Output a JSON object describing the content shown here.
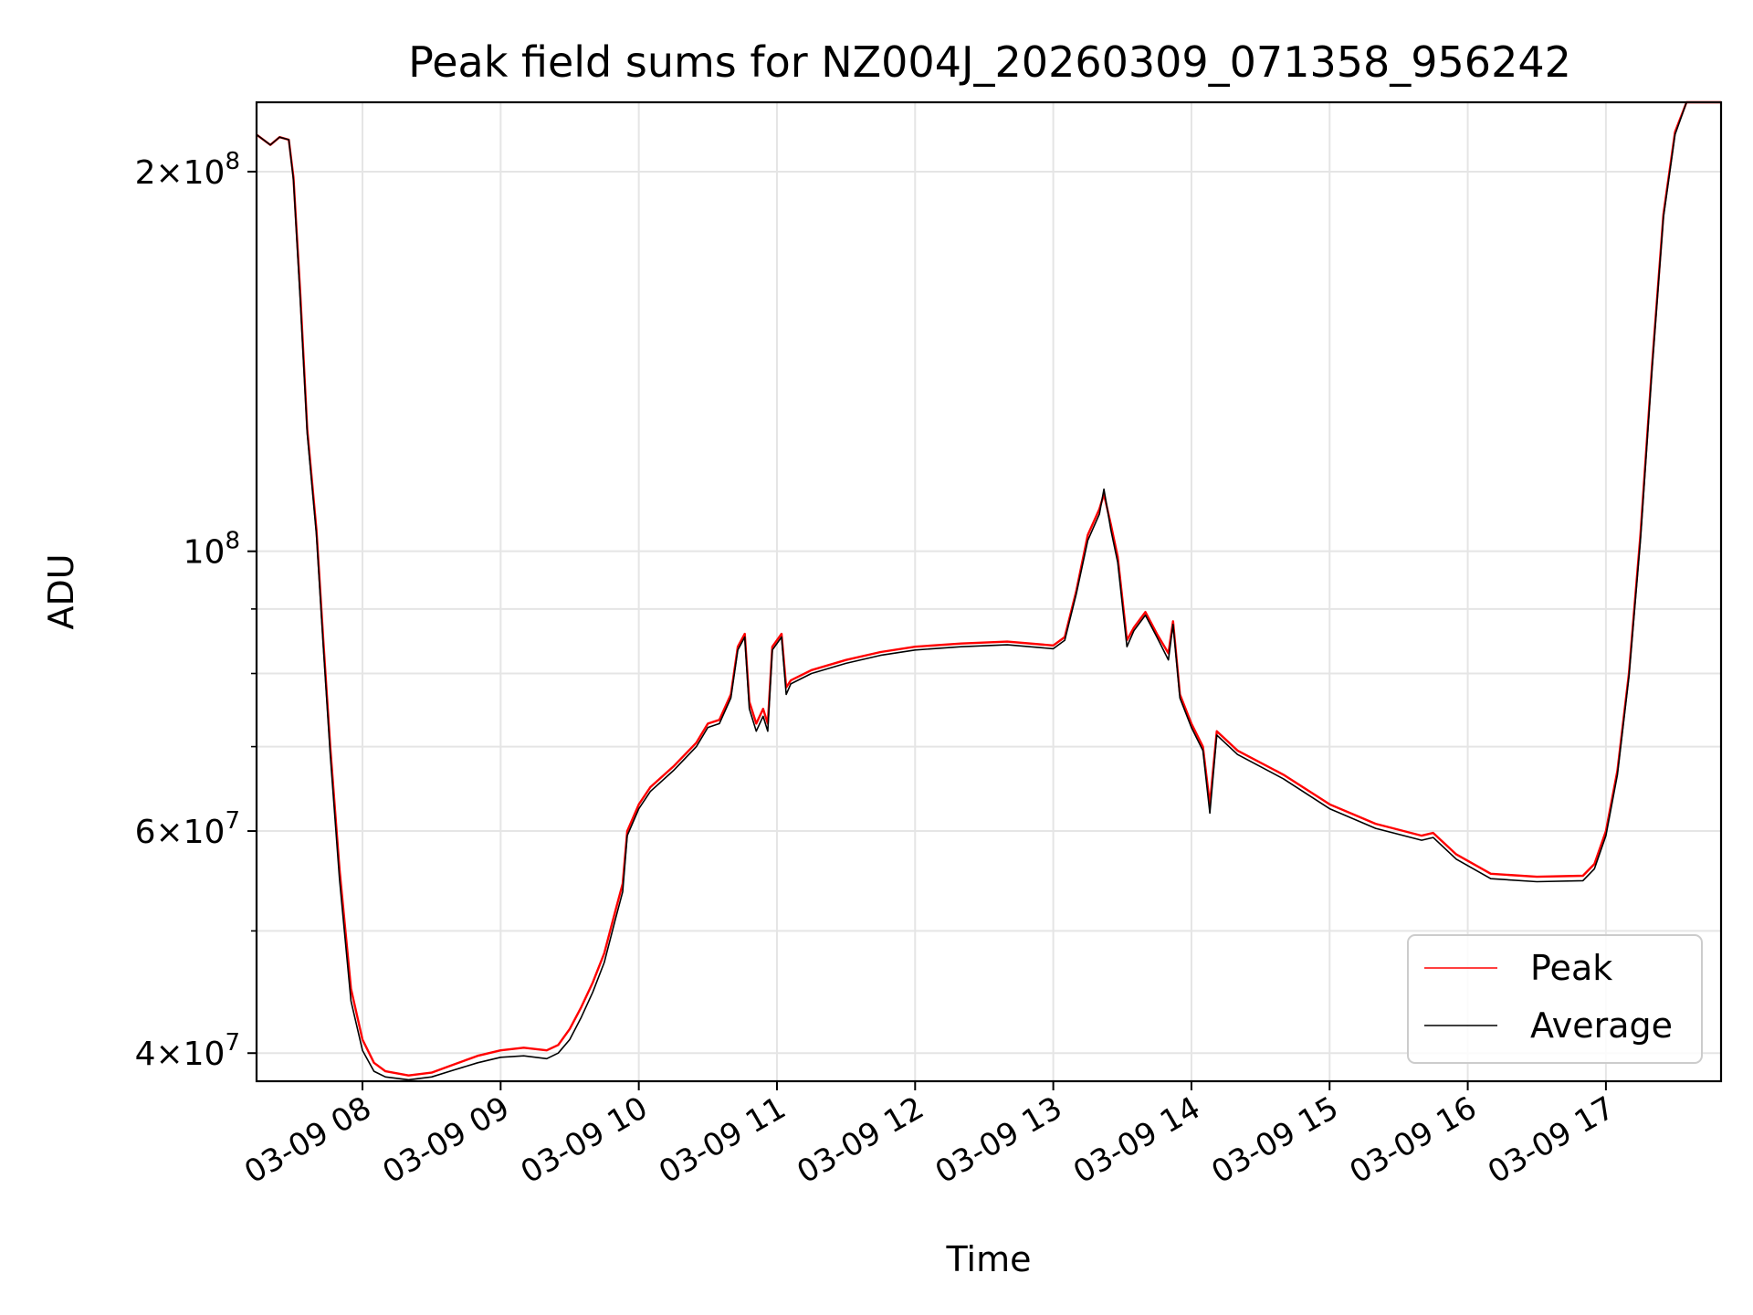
{
  "chart_data": {
    "type": "line",
    "title": "Peak field sums for NZ004J_20260309_071358_956242",
    "xlabel": "Time",
    "ylabel": "ADU",
    "yscale": "log",
    "grid": true,
    "legend_position": "lower-right",
    "xlim": [
      "2026-03-09 07:14",
      "2026-03-09 17:50"
    ],
    "ylim": [
      38000000.0,
      227000000.0
    ],
    "x_ticks": [
      "2026-03-09 08:00",
      "2026-03-09 09:00",
      "2026-03-09 10:00",
      "2026-03-09 11:00",
      "2026-03-09 12:00",
      "2026-03-09 13:00",
      "2026-03-09 14:00",
      "2026-03-09 15:00",
      "2026-03-09 16:00",
      "2026-03-09 17:00"
    ],
    "x_tick_labels": [
      "03-09 08",
      "03-09 09",
      "03-09 10",
      "03-09 11",
      "03-09 12",
      "03-09 13",
      "03-09 14",
      "03-09 15",
      "03-09 16",
      "03-09 17"
    ],
    "y_major_ticks": [
      {
        "value": 200000000.0,
        "mantissa": "2",
        "exp": "8"
      },
      {
        "value": 100000000.0,
        "mantissa": "",
        "exp": "8"
      },
      {
        "value": 60000000.0,
        "mantissa": "6",
        "exp": "7"
      },
      {
        "value": 40000000.0,
        "mantissa": "4",
        "exp": "7"
      }
    ],
    "y_minor_ticks": [
      90000000.0,
      80000000.0,
      70000000.0,
      50000000.0
    ],
    "colors": {
      "peak": "#ff0000",
      "average": "#000000",
      "grid": "#e5e5e5"
    },
    "series": [
      {
        "name": "Peak",
        "color": "#ff0000",
        "points": [
          [
            "2026-03-09 07:14",
            214000000.0
          ],
          [
            "2026-03-09 07:20",
            210000000.0
          ],
          [
            "2026-03-09 07:24",
            213000000.0
          ],
          [
            "2026-03-09 07:28",
            212000000.0
          ],
          [
            "2026-03-09 07:30",
            198000000.0
          ],
          [
            "2026-03-09 07:33",
            160000000.0
          ],
          [
            "2026-03-09 07:36",
            125000000.0
          ],
          [
            "2026-03-09 07:40",
            104000000.0
          ],
          [
            "2026-03-09 07:43",
            85000000.0
          ],
          [
            "2026-03-09 07:46",
            70000000.0
          ],
          [
            "2026-03-09 07:50",
            56000000.0
          ],
          [
            "2026-03-09 07:55",
            45000000.0
          ],
          [
            "2026-03-09 08:00",
            41000000.0
          ],
          [
            "2026-03-09 08:05",
            39300000.0
          ],
          [
            "2026-03-09 08:10",
            38700000.0
          ],
          [
            "2026-03-09 08:20",
            38400000.0
          ],
          [
            "2026-03-09 08:30",
            38600000.0
          ],
          [
            "2026-03-09 08:40",
            39200000.0
          ],
          [
            "2026-03-09 08:50",
            39800000.0
          ],
          [
            "2026-03-09 09:00",
            40200000.0
          ],
          [
            "2026-03-09 09:10",
            40400000.0
          ],
          [
            "2026-03-09 09:20",
            40200000.0
          ],
          [
            "2026-03-09 09:25",
            40600000.0
          ],
          [
            "2026-03-09 09:30",
            41800000.0
          ],
          [
            "2026-03-09 09:35",
            43500000.0
          ],
          [
            "2026-03-09 09:40",
            45500000.0
          ],
          [
            "2026-03-09 09:45",
            48000000.0
          ],
          [
            "2026-03-09 09:50",
            52000000.0
          ],
          [
            "2026-03-09 09:53",
            54500000.0
          ],
          [
            "2026-03-09 09:55",
            60000000.0
          ],
          [
            "2026-03-09 10:00",
            63000000.0
          ],
          [
            "2026-03-09 10:05",
            65000000.0
          ],
          [
            "2026-03-09 10:15",
            67500000.0
          ],
          [
            "2026-03-09 10:25",
            70500000.0
          ],
          [
            "2026-03-09 10:30",
            73000000.0
          ],
          [
            "2026-03-09 10:35",
            73500000.0
          ],
          [
            "2026-03-09 10:40",
            77000000.0
          ],
          [
            "2026-03-09 10:43",
            84000000.0
          ],
          [
            "2026-03-09 10:46",
            86000000.0
          ],
          [
            "2026-03-09 10:48",
            76000000.0
          ],
          [
            "2026-03-09 10:51",
            73000000.0
          ],
          [
            "2026-03-09 10:54",
            75000000.0
          ],
          [
            "2026-03-09 10:56",
            73000000.0
          ],
          [
            "2026-03-09 10:58",
            84000000.0
          ],
          [
            "2026-03-09 11:02",
            86000000.0
          ],
          [
            "2026-03-09 11:04",
            78000000.0
          ],
          [
            "2026-03-09 11:06",
            79000000.0
          ],
          [
            "2026-03-09 11:15",
            80500000.0
          ],
          [
            "2026-03-09 11:30",
            82000000.0
          ],
          [
            "2026-03-09 11:45",
            83200000.0
          ],
          [
            "2026-03-09 12:00",
            84000000.0
          ],
          [
            "2026-03-09 12:20",
            84500000.0
          ],
          [
            "2026-03-09 12:40",
            84800000.0
          ],
          [
            "2026-03-09 13:00",
            84200000.0
          ],
          [
            "2026-03-09 13:05",
            85500000.0
          ],
          [
            "2026-03-09 13:10",
            93000000.0
          ],
          [
            "2026-03-09 13:15",
            103000000.0
          ],
          [
            "2026-03-09 13:20",
            108000000.0
          ],
          [
            "2026-03-09 13:22",
            111000000.0
          ],
          [
            "2026-03-09 13:25",
            105000000.0
          ],
          [
            "2026-03-09 13:28",
            99000000.0
          ],
          [
            "2026-03-09 13:32",
            85000000.0
          ],
          [
            "2026-03-09 13:35",
            87000000.0
          ],
          [
            "2026-03-09 13:40",
            89500000.0
          ],
          [
            "2026-03-09 13:45",
            86000000.0
          ],
          [
            "2026-03-09 13:50",
            83000000.0
          ],
          [
            "2026-03-09 13:52",
            88000000.0
          ],
          [
            "2026-03-09 13:55",
            77000000.0
          ],
          [
            "2026-03-09 14:00",
            73000000.0
          ],
          [
            "2026-03-09 14:05",
            70000000.0
          ],
          [
            "2026-03-09 14:08",
            63000000.0
          ],
          [
            "2026-03-09 14:11",
            72000000.0
          ],
          [
            "2026-03-09 14:20",
            69500000.0
          ],
          [
            "2026-03-09 14:40",
            66500000.0
          ],
          [
            "2026-03-09 15:00",
            63000000.0
          ],
          [
            "2026-03-09 15:20",
            60800000.0
          ],
          [
            "2026-03-09 15:40",
            59500000.0
          ],
          [
            "2026-03-09 15:45",
            59800000.0
          ],
          [
            "2026-03-09 15:55",
            57500000.0
          ],
          [
            "2026-03-09 16:10",
            55500000.0
          ],
          [
            "2026-03-09 16:30",
            55200000.0
          ],
          [
            "2026-03-09 16:50",
            55300000.0
          ],
          [
            "2026-03-09 16:55",
            56500000.0
          ],
          [
            "2026-03-09 17:00",
            60000000.0
          ],
          [
            "2026-03-09 17:05",
            67000000.0
          ],
          [
            "2026-03-09 17:10",
            80000000.0
          ],
          [
            "2026-03-09 17:15",
            103000000.0
          ],
          [
            "2026-03-09 17:20",
            140000000.0
          ],
          [
            "2026-03-09 17:25",
            185000000.0
          ],
          [
            "2026-03-09 17:30",
            215000000.0
          ],
          [
            "2026-03-09 17:35",
            227000000.0
          ],
          [
            "2026-03-09 17:50",
            227000000.0
          ]
        ]
      },
      {
        "name": "Average",
        "color": "#000000",
        "points": [
          [
            "2026-03-09 07:14",
            214000000.0
          ],
          [
            "2026-03-09 07:20",
            210000000.0
          ],
          [
            "2026-03-09 07:24",
            213000000.0
          ],
          [
            "2026-03-09 07:28",
            212000000.0
          ],
          [
            "2026-03-09 07:30",
            197000000.0
          ],
          [
            "2026-03-09 07:33",
            158000000.0
          ],
          [
            "2026-03-09 07:36",
            124000000.0
          ],
          [
            "2026-03-09 07:40",
            103000000.0
          ],
          [
            "2026-03-09 07:43",
            84000000.0
          ],
          [
            "2026-03-09 07:46",
            69000000.0
          ],
          [
            "2026-03-09 07:50",
            55000000.0
          ],
          [
            "2026-03-09 07:55",
            44000000.0
          ],
          [
            "2026-03-09 08:00",
            40200000.0
          ],
          [
            "2026-03-09 08:05",
            38700000.0
          ],
          [
            "2026-03-09 08:10",
            38300000.0
          ],
          [
            "2026-03-09 08:20",
            38100000.0
          ],
          [
            "2026-03-09 08:30",
            38300000.0
          ],
          [
            "2026-03-09 08:40",
            38800000.0
          ],
          [
            "2026-03-09 08:50",
            39300000.0
          ],
          [
            "2026-03-09 09:00",
            39700000.0
          ],
          [
            "2026-03-09 09:10",
            39800000.0
          ],
          [
            "2026-03-09 09:20",
            39600000.0
          ],
          [
            "2026-03-09 09:25",
            40000000.0
          ],
          [
            "2026-03-09 09:30",
            41000000.0
          ],
          [
            "2026-03-09 09:35",
            42700000.0
          ],
          [
            "2026-03-09 09:40",
            44700000.0
          ],
          [
            "2026-03-09 09:45",
            47200000.0
          ],
          [
            "2026-03-09 09:50",
            51200000.0
          ],
          [
            "2026-03-09 09:53",
            53700000.0
          ],
          [
            "2026-03-09 09:55",
            59500000.0
          ],
          [
            "2026-03-09 10:00",
            62500000.0
          ],
          [
            "2026-03-09 10:05",
            64500000.0
          ],
          [
            "2026-03-09 10:15",
            67000000.0
          ],
          [
            "2026-03-09 10:25",
            70000000.0
          ],
          [
            "2026-03-09 10:30",
            72500000.0
          ],
          [
            "2026-03-09 10:35",
            73000000.0
          ],
          [
            "2026-03-09 10:40",
            76500000.0
          ],
          [
            "2026-03-09 10:43",
            83500000.0
          ],
          [
            "2026-03-09 10:46",
            85500000.0
          ],
          [
            "2026-03-09 10:48",
            75000000.0
          ],
          [
            "2026-03-09 10:51",
            72000000.0
          ],
          [
            "2026-03-09 10:54",
            74000000.0
          ],
          [
            "2026-03-09 10:56",
            72000000.0
          ],
          [
            "2026-03-09 10:58",
            83500000.0
          ],
          [
            "2026-03-09 11:02",
            85500000.0
          ],
          [
            "2026-03-09 11:04",
            77000000.0
          ],
          [
            "2026-03-09 11:06",
            78500000.0
          ],
          [
            "2026-03-09 11:15",
            80000000.0
          ],
          [
            "2026-03-09 11:30",
            81500000.0
          ],
          [
            "2026-03-09 11:45",
            82700000.0
          ],
          [
            "2026-03-09 12:00",
            83500000.0
          ],
          [
            "2026-03-09 12:20",
            84000000.0
          ],
          [
            "2026-03-09 12:40",
            84300000.0
          ],
          [
            "2026-03-09 13:00",
            83700000.0
          ],
          [
            "2026-03-09 13:05",
            85000000.0
          ],
          [
            "2026-03-09 13:10",
            92500000.0
          ],
          [
            "2026-03-09 13:15",
            102000000.0
          ],
          [
            "2026-03-09 13:20",
            107000000.0
          ],
          [
            "2026-03-09 13:22",
            112000000.0
          ],
          [
            "2026-03-09 13:25",
            104000000.0
          ],
          [
            "2026-03-09 13:28",
            98000000.0
          ],
          [
            "2026-03-09 13:32",
            84000000.0
          ],
          [
            "2026-03-09 13:35",
            86500000.0
          ],
          [
            "2026-03-09 13:40",
            89000000.0
          ],
          [
            "2026-03-09 13:45",
            85500000.0
          ],
          [
            "2026-03-09 13:50",
            82000000.0
          ],
          [
            "2026-03-09 13:52",
            87500000.0
          ],
          [
            "2026-03-09 13:55",
            76500000.0
          ],
          [
            "2026-03-09 14:00",
            72500000.0
          ],
          [
            "2026-03-09 14:05",
            69500000.0
          ],
          [
            "2026-03-09 14:08",
            62000000.0
          ],
          [
            "2026-03-09 14:11",
            71500000.0
          ],
          [
            "2026-03-09 14:20",
            69000000.0
          ],
          [
            "2026-03-09 14:40",
            66000000.0
          ],
          [
            "2026-03-09 15:00",
            62500000.0
          ],
          [
            "2026-03-09 15:20",
            60300000.0
          ],
          [
            "2026-03-09 15:40",
            59000000.0
          ],
          [
            "2026-03-09 15:45",
            59300000.0
          ],
          [
            "2026-03-09 15:55",
            57000000.0
          ],
          [
            "2026-03-09 16:10",
            55000000.0
          ],
          [
            "2026-03-09 16:30",
            54700000.0
          ],
          [
            "2026-03-09 16:50",
            54800000.0
          ],
          [
            "2026-03-09 16:55",
            56000000.0
          ],
          [
            "2026-03-09 17:00",
            59500000.0
          ],
          [
            "2026-03-09 17:05",
            66500000.0
          ],
          [
            "2026-03-09 17:10",
            79500000.0
          ],
          [
            "2026-03-09 17:15",
            102000000.0
          ],
          [
            "2026-03-09 17:20",
            139000000.0
          ],
          [
            "2026-03-09 17:25",
            184000000.0
          ],
          [
            "2026-03-09 17:30",
            214000000.0
          ],
          [
            "2026-03-09 17:35",
            227000000.0
          ],
          [
            "2026-03-09 17:50",
            227000000.0
          ]
        ]
      }
    ]
  }
}
